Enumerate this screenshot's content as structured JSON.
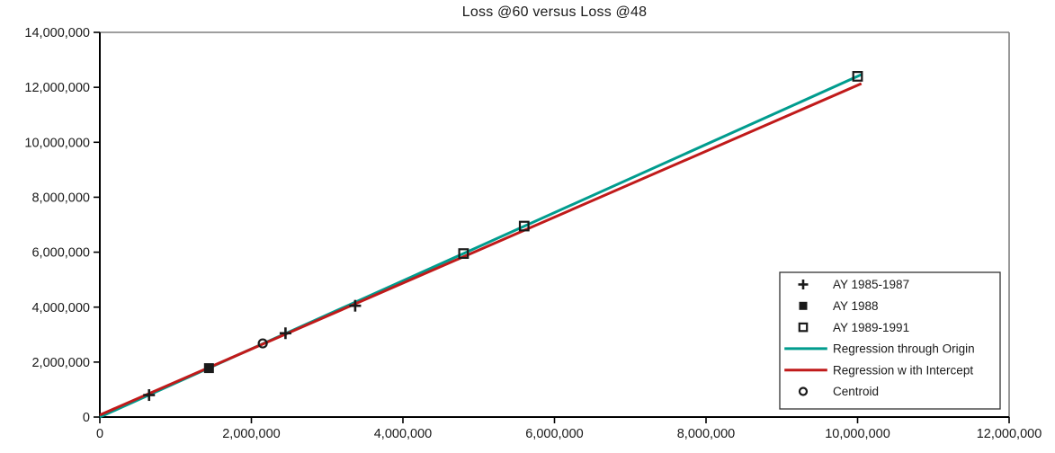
{
  "chart_data": {
    "type": "scatter",
    "title": "Loss @60 versus Loss @48",
    "x_axis": {
      "min": 0,
      "max": 12000000,
      "tick_interval": 2000000,
      "tick_labels": [
        "0",
        "2,000,000",
        "4,000,000",
        "6,000,000",
        "8,000,000",
        "10,000,000",
        "12,000,000"
      ]
    },
    "y_axis": {
      "min": 0,
      "max": 14000000,
      "tick_interval": 2000000,
      "tick_labels": [
        "0",
        "2,000,000",
        "4,000,000",
        "6,000,000",
        "8,000,000",
        "10,000,000",
        "12,000,000",
        "14,000,000"
      ]
    },
    "colors": {
      "marker": "#1a1a1a",
      "regression_through_origin": "#009C8E",
      "regression_with_intercept": "#C01A1A",
      "axis": "#000000",
      "plot_border": "#7f7f7f"
    },
    "series": [
      {
        "name": "AY 1985-1987",
        "marker": "plus",
        "points": [
          [
            650000,
            800000
          ],
          [
            2450000,
            3050000
          ],
          [
            3370000,
            4050000
          ]
        ]
      },
      {
        "name": "AY 1988",
        "marker": "filled-square",
        "points": [
          [
            1440000,
            1780000
          ]
        ]
      },
      {
        "name": "AY 1989-1991",
        "marker": "open-square",
        "points": [
          [
            4800000,
            5950000
          ],
          [
            5600000,
            6950000
          ],
          [
            10000000,
            12400000
          ]
        ]
      },
      {
        "name": "Centroid",
        "marker": "open-circle",
        "points": [
          [
            2150000,
            2680000
          ]
        ]
      }
    ],
    "lines": [
      {
        "name": "Regression through Origin",
        "color": "#009C8E",
        "slope": 1.24,
        "intercept": 0,
        "x_start": 0,
        "x_end": 10050000
      },
      {
        "name": "Regression w ith Intercept",
        "color": "#C01A1A",
        "slope": 1.2,
        "intercept": 75000,
        "x_start": 0,
        "x_end": 10050000
      }
    ],
    "legend": {
      "position": "bottom-right",
      "entries": [
        {
          "label": "AY 1985-1987",
          "marker": "plus"
        },
        {
          "label": "AY 1988",
          "marker": "filled-square"
        },
        {
          "label": "AY 1989-1991",
          "marker": "open-square"
        },
        {
          "label": "Regression through Origin",
          "marker": "line",
          "color": "#009C8E"
        },
        {
          "label": "Regression w ith Intercept",
          "marker": "line",
          "color": "#C01A1A"
        },
        {
          "label": "Centroid",
          "marker": "open-circle"
        }
      ]
    }
  }
}
